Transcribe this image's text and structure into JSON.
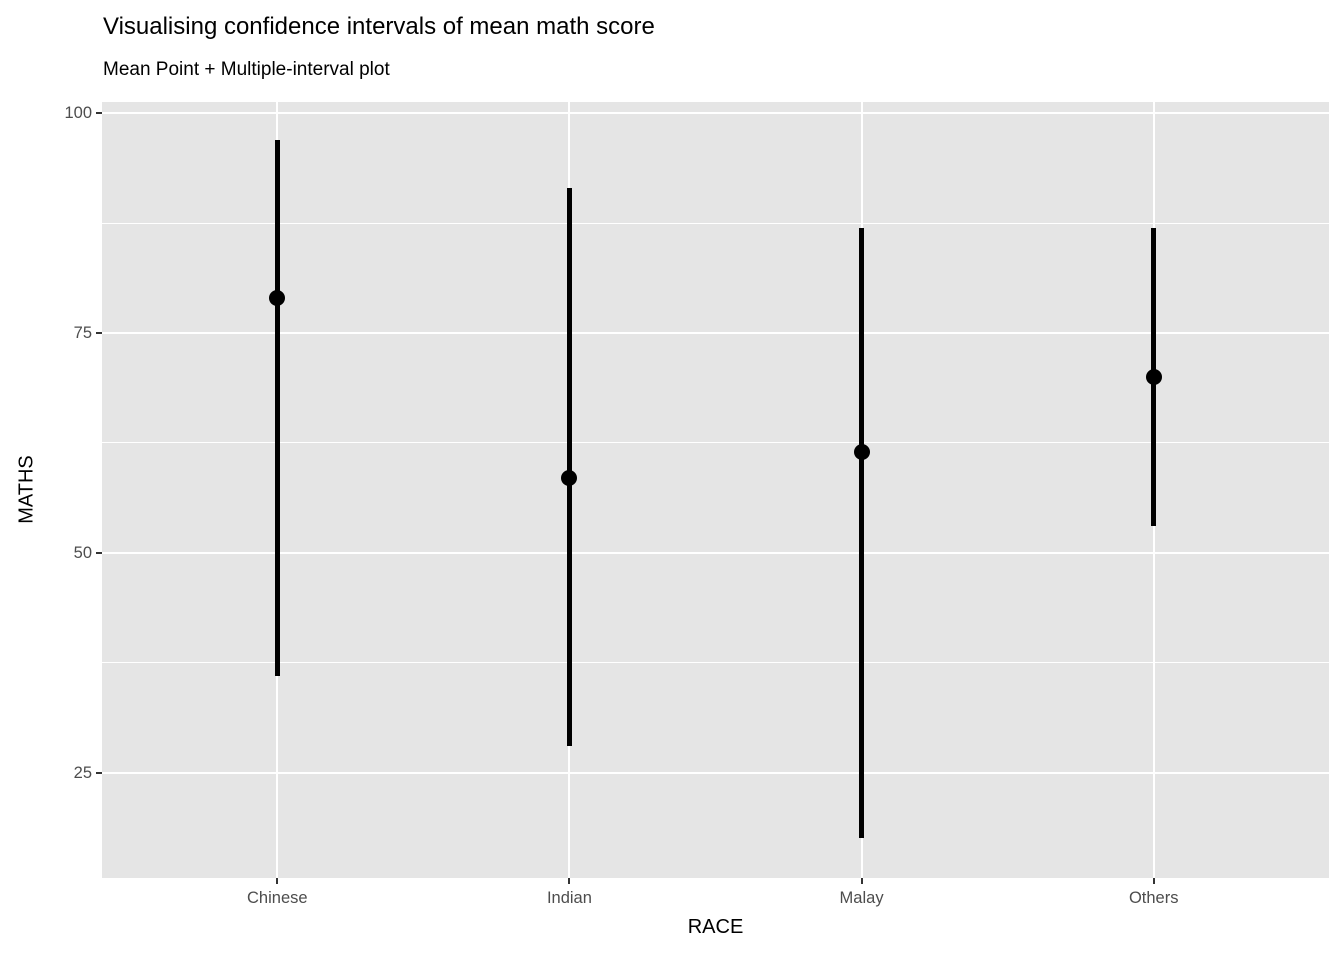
{
  "chart_data": {
    "type": "scatter",
    "variant": "point-interval (mean point + interval bar per category)",
    "title": "Visualising confidence intervals of mean math score",
    "subtitle": "Mean Point + Multiple-interval plot",
    "xlabel": "RACE",
    "ylabel": "MATHS",
    "categories": [
      "Chinese",
      "Indian",
      "Malay",
      "Others"
    ],
    "series": [
      {
        "name": "mean",
        "values": [
          79,
          58.5,
          61.5,
          70
        ]
      },
      {
        "name": "interval_low",
        "values": [
          36,
          28,
          17.5,
          53
        ]
      },
      {
        "name": "interval_high",
        "values": [
          97,
          91.5,
          87,
          87
        ]
      }
    ],
    "ylim": [
      13,
      101.3
    ],
    "y_major_ticks": [
      100,
      75,
      50,
      25
    ],
    "y_minor_gridlines": [
      87.5,
      62.5,
      37.5
    ],
    "grid": "white major + minor horizontal gridlines, white vertical gridline at each category, on grey panel",
    "legend": "none",
    "colors": {
      "point": "#000000",
      "interval": "#000000",
      "panel_bg": "#E5E5E5",
      "gridline": "#FFFFFF",
      "axis_text": "#4D4D4D",
      "tick_mark": "#333333",
      "title_text": "#000000",
      "figure_bg": "#FFFFFF"
    }
  }
}
